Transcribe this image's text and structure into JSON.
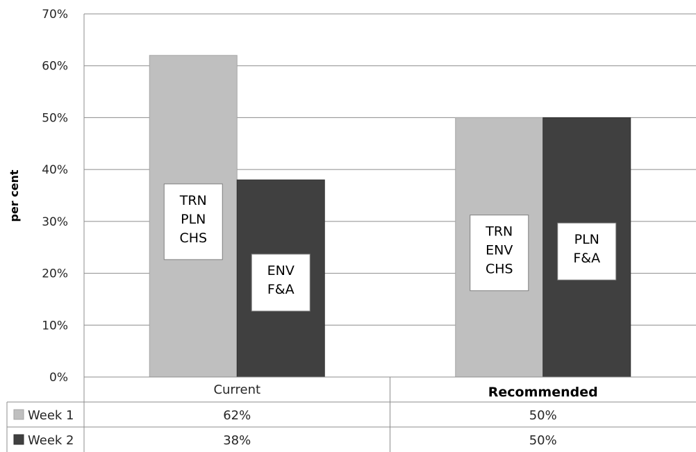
{
  "chart_data": {
    "type": "bar",
    "ylabel": "per cent",
    "xlabel": "",
    "ylim": [
      0,
      70
    ],
    "yticks": [
      "0%",
      "10%",
      "20%",
      "30%",
      "40%",
      "50%",
      "60%",
      "70%"
    ],
    "categories": [
      "Current",
      "Recommended"
    ],
    "category_bold": [
      false,
      true
    ],
    "series": [
      {
        "name": "Week 1",
        "values": [
          62,
          50
        ],
        "labels": [
          "62%",
          "50%"
        ],
        "color": "#bfbfbf"
      },
      {
        "name": "Week 2",
        "values": [
          38,
          50
        ],
        "labels": [
          "38%",
          "50%"
        ],
        "color": "#404040"
      }
    ],
    "annotations": [
      {
        "category": 0,
        "series": 0,
        "lines": [
          "TRN",
          "PLN",
          "CHS"
        ]
      },
      {
        "category": 0,
        "series": 1,
        "lines": [
          "ENV",
          "F&A"
        ]
      },
      {
        "category": 1,
        "series": 0,
        "lines": [
          "TRN",
          "ENV",
          "CHS"
        ]
      },
      {
        "category": 1,
        "series": 1,
        "lines": [
          "PLN",
          "F&A"
        ]
      }
    ],
    "grid": true,
    "legend": "data table"
  }
}
